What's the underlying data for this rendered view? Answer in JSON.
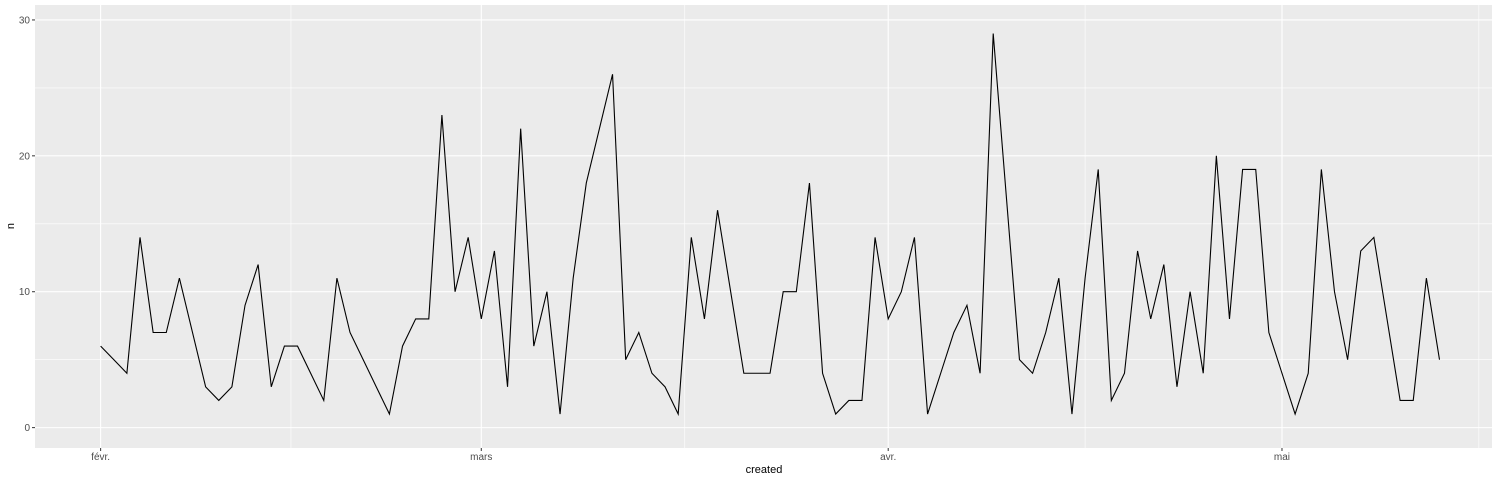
{
  "chart_data": {
    "type": "line",
    "title": "",
    "xlabel": "created",
    "ylabel": "n",
    "ylim": [
      0,
      30
    ],
    "y_ticks": [
      0,
      10,
      20,
      30
    ],
    "x_range": [
      -5,
      106
    ],
    "x_ticks": [
      {
        "pos": 0,
        "label": "févr."
      },
      {
        "pos": 29,
        "label": "mars"
      },
      {
        "pos": 60,
        "label": "avr."
      },
      {
        "pos": 90,
        "label": "mai"
      }
    ],
    "grid": true,
    "panel_background": "#ebebeb",
    "grid_color": "#ffffff",
    "line_color": "#000000",
    "series": [
      {
        "x": [
          0,
          1,
          2,
          3,
          4,
          5,
          6,
          7,
          8,
          9,
          10,
          11,
          12,
          13,
          14,
          15,
          16,
          17,
          18,
          19,
          20,
          21,
          22,
          23,
          24,
          25,
          26,
          27,
          28,
          29,
          30,
          31,
          32,
          33,
          34,
          35,
          36,
          37,
          38,
          39,
          40,
          41,
          42,
          43,
          44,
          45,
          46,
          47,
          48,
          49,
          50,
          51,
          52,
          53,
          54,
          55,
          56,
          57,
          58,
          59,
          60,
          61,
          62,
          63,
          64,
          65,
          66,
          67,
          68,
          69,
          70,
          71,
          72,
          73,
          74,
          75,
          76,
          77,
          78,
          79,
          80,
          81,
          82,
          83,
          84,
          85,
          86,
          87,
          88,
          89,
          90,
          91,
          92,
          93,
          94,
          95,
          96,
          97,
          98,
          99,
          100,
          101,
          102
        ],
        "y": [
          6,
          5,
          4,
          14,
          7,
          7,
          11,
          7,
          3,
          2,
          3,
          9,
          12,
          3,
          6,
          6,
          4,
          2,
          11,
          7,
          5,
          3,
          1,
          6,
          8,
          8,
          23,
          10,
          14,
          8,
          13,
          3,
          22,
          6,
          10,
          1,
          11,
          18,
          22,
          26,
          5,
          7,
          4,
          3,
          1,
          14,
          8,
          16,
          10,
          4,
          4,
          4,
          10,
          10,
          18,
          4,
          1,
          2,
          2,
          14,
          8,
          10,
          14,
          1,
          4,
          7,
          9,
          4,
          29,
          17,
          5,
          4,
          7,
          11,
          1,
          11,
          19,
          2,
          4,
          13,
          8,
          12,
          3,
          10,
          4,
          20,
          8,
          19,
          19,
          7,
          4,
          1,
          4,
          19,
          10,
          5,
          13,
          14,
          8,
          2,
          2,
          11,
          5
        ]
      }
    ]
  }
}
